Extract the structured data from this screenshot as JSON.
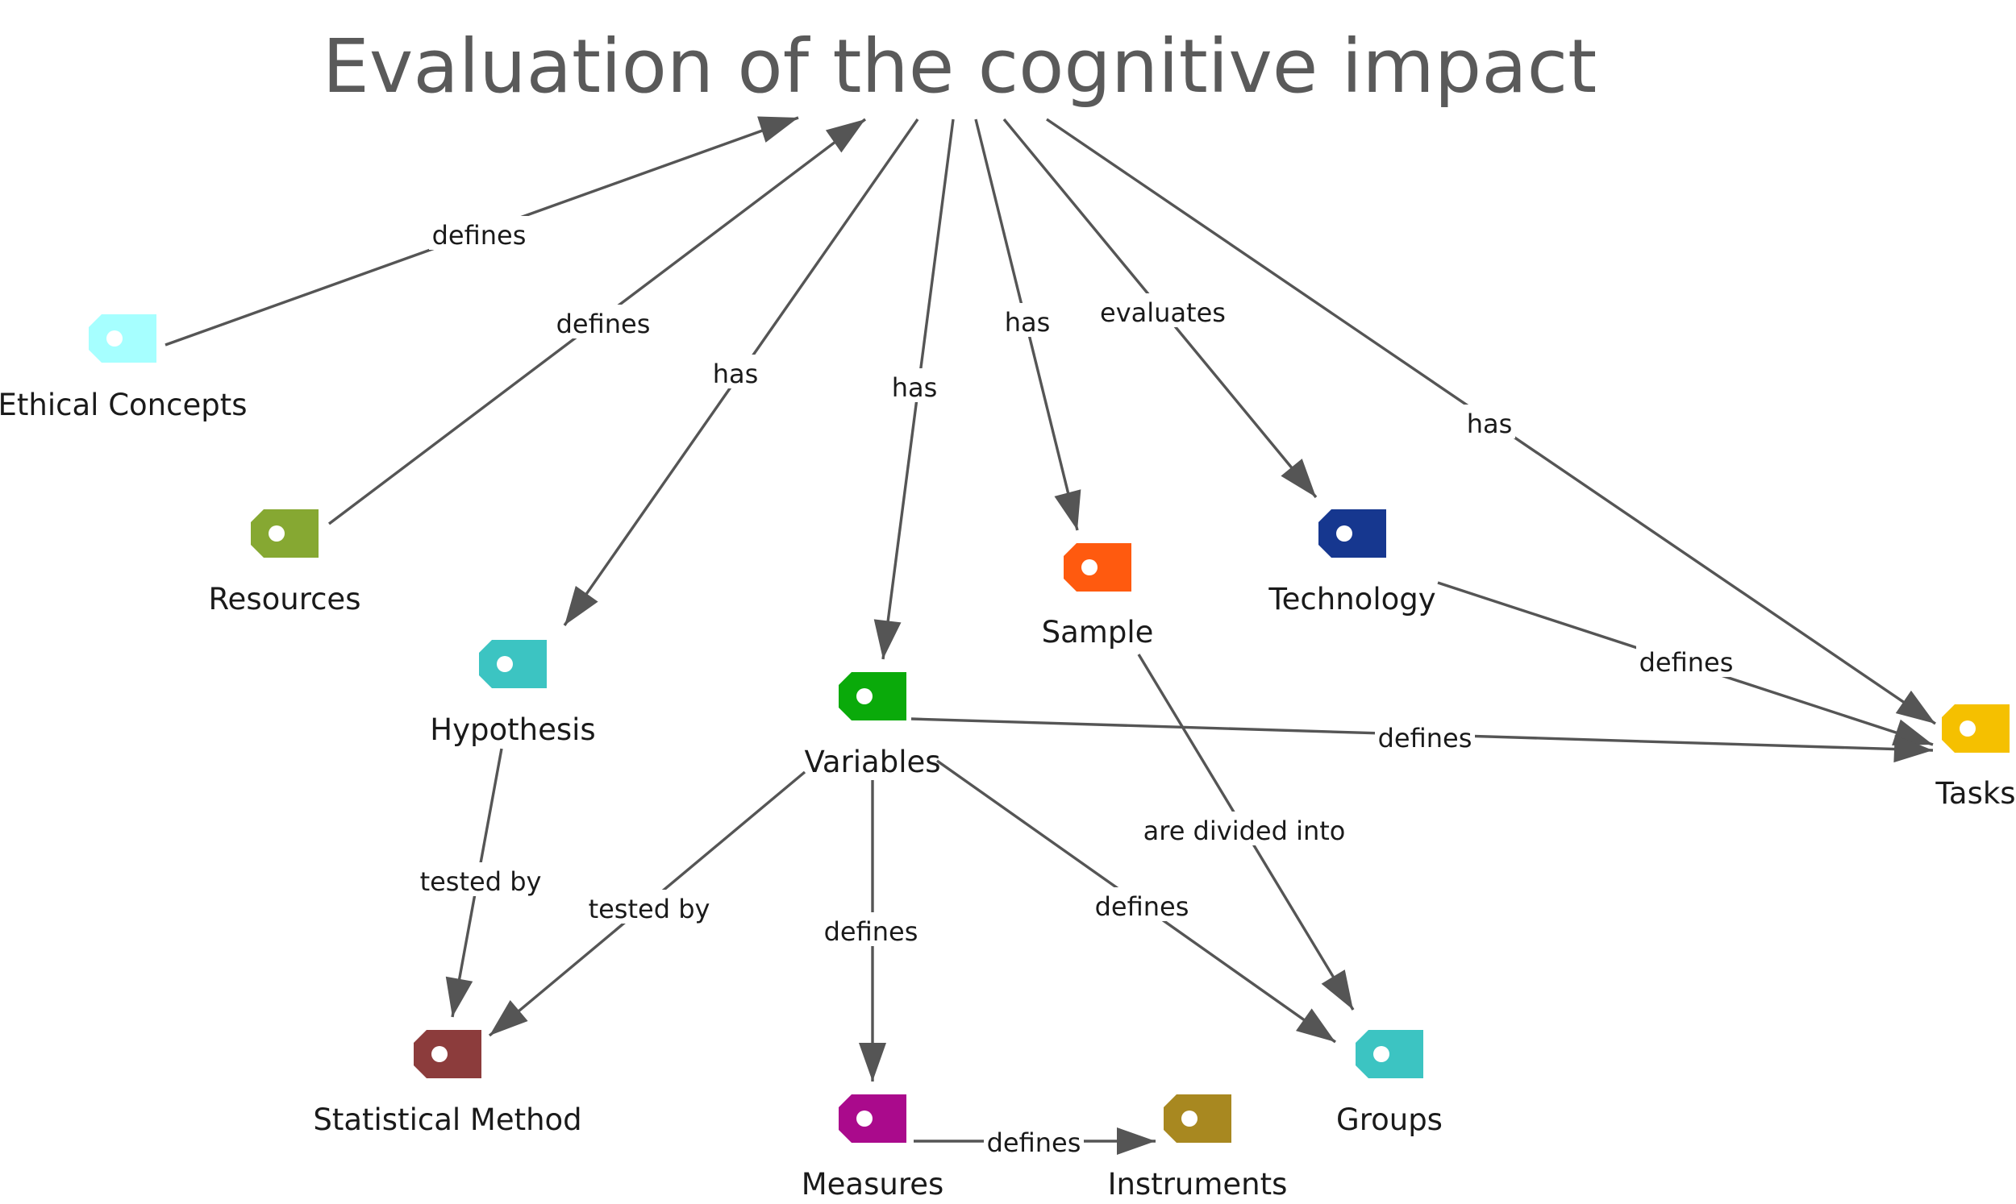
{
  "title": "Evaluation of the cognitive impact",
  "nodes": {
    "ethical": {
      "label": "Ethical Concepts",
      "color": "#a6ffff"
    },
    "resources": {
      "label": "Resources",
      "color": "#86a832"
    },
    "hypothesis": {
      "label": "Hypothesis",
      "color": "#3cc4c2"
    },
    "variables": {
      "label": "Variables",
      "color": "#0aaa0a"
    },
    "sample": {
      "label": "Sample",
      "color": "#ff5a0f"
    },
    "technology": {
      "label": "Technology",
      "color": "#16378f"
    },
    "tasks": {
      "label": "Tasks",
      "color": "#f5c000"
    },
    "statistical": {
      "label": "Statistical Method",
      "color": "#8c3c3c"
    },
    "measures": {
      "label": "Measures",
      "color": "#aa0a8c"
    },
    "instruments": {
      "label": "Instruments",
      "color": "#a88820"
    },
    "groups": {
      "label": "Groups",
      "color": "#3cc4c2"
    }
  },
  "edges": [
    {
      "from": "ethical",
      "to": "title",
      "label": "defines"
    },
    {
      "from": "resources",
      "to": "title",
      "label": "defines"
    },
    {
      "from": "title",
      "to": "hypothesis",
      "label": "has"
    },
    {
      "from": "title",
      "to": "variables",
      "label": "has"
    },
    {
      "from": "title",
      "to": "sample",
      "label": "has"
    },
    {
      "from": "title",
      "to": "technology",
      "label": "evaluates"
    },
    {
      "from": "title",
      "to": "tasks",
      "label": "has"
    },
    {
      "from": "technology",
      "to": "tasks",
      "label": "defines"
    },
    {
      "from": "variables",
      "to": "tasks",
      "label": "defines"
    },
    {
      "from": "sample",
      "to": "groups",
      "label": "are divided into"
    },
    {
      "from": "hypothesis",
      "to": "statistical",
      "label": "tested by"
    },
    {
      "from": "variables",
      "to": "statistical",
      "label": "tested by"
    },
    {
      "from": "variables",
      "to": "measures",
      "label": "defines"
    },
    {
      "from": "variables",
      "to": "groups",
      "label": "defines"
    },
    {
      "from": "measures",
      "to": "instruments",
      "label": "defines"
    }
  ]
}
